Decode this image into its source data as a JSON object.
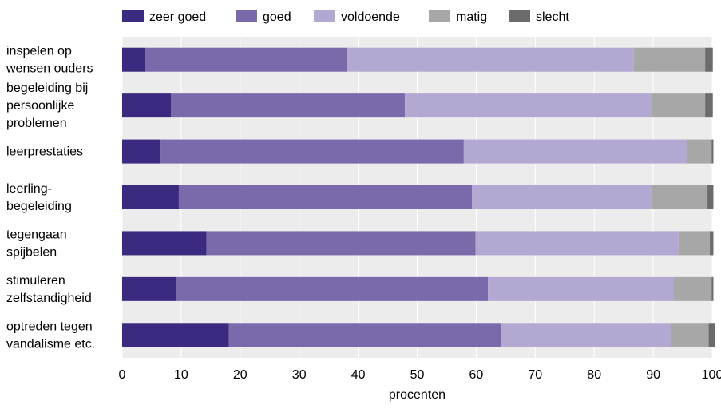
{
  "chart_data": {
    "type": "bar",
    "orientation": "horizontal",
    "stacked": true,
    "xlabel": "procenten",
    "xlim": [
      0,
      100
    ],
    "xticks": [
      "0",
      "10",
      "20",
      "30",
      "40",
      "50",
      "60",
      "70",
      "80",
      "90",
      "100"
    ],
    "grid": true,
    "legend_position": "top",
    "categories": [
      [
        "inspelen op",
        "wensen ouders"
      ],
      [
        "begeleiding bij",
        "persoonlijke",
        "problemen"
      ],
      [
        "leerprestaties"
      ],
      [
        "leerling-",
        "begeleiding"
      ],
      [
        "tegengaan",
        "spijbelen"
      ],
      [
        "stimuleren",
        "zelfstandigheid"
      ],
      [
        "optreden tegen",
        "vandalisme etc."
      ]
    ],
    "series": [
      {
        "name": "zeer goed",
        "color": "#3b2a7f",
        "values": [
          3.8,
          8.3,
          6.5,
          9.6,
          14.3,
          9.1,
          18.1
        ]
      },
      {
        "name": "goed",
        "color": "#7a6aab",
        "values": [
          34.3,
          39.6,
          51.4,
          49.7,
          45.6,
          52.9,
          46.1
        ]
      },
      {
        "name": "voldoende",
        "color": "#b3a8d1",
        "values": [
          48.6,
          41.7,
          37.9,
          30.4,
          34.4,
          31.5,
          28.9
        ]
      },
      {
        "name": "matig",
        "color": "#a7a7a7",
        "values": [
          12.1,
          9.2,
          4.1,
          9.5,
          5.3,
          6.4,
          6.3
        ]
      },
      {
        "name": "slecht",
        "color": "#6b6b6b",
        "values": [
          1.3,
          1.3,
          0.3,
          1.0,
          0.6,
          0.3,
          1.1
        ]
      }
    ]
  }
}
